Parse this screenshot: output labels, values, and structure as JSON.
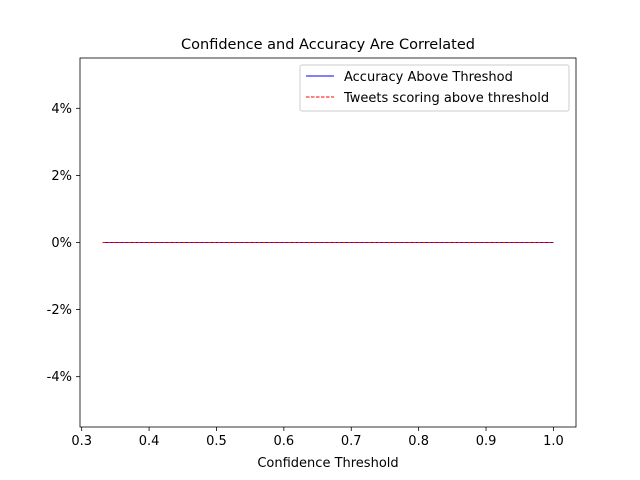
{
  "chart_data": {
    "type": "line",
    "title": "Confidence and Accuracy Are Correlated",
    "xlabel": "Confidence Threshold",
    "ylabel": "",
    "xlim": [
      0.2975,
      1.0335
    ],
    "ylim": [
      -0.055,
      0.055
    ],
    "xticks": [
      0.3,
      0.4,
      0.5,
      0.6,
      0.7,
      0.8,
      0.9,
      1.0
    ],
    "xtick_labels": [
      "0.3",
      "0.4",
      "0.5",
      "0.6",
      "0.7",
      "0.8",
      "0.9",
      "1.0"
    ],
    "yticks": [
      -0.04,
      -0.02,
      0.0,
      0.02,
      0.04
    ],
    "ytick_labels": [
      "-4%",
      "-2%",
      "0%",
      "2%",
      "4%"
    ],
    "grid": false,
    "legend_position": "upper-right",
    "series": [
      {
        "name": "Accuracy Above Threshod",
        "color": "#0000ff",
        "style": "solid",
        "x": [
          0.331,
          1.0
        ],
        "y": [
          0.0,
          0.0
        ]
      },
      {
        "name": "Tweets scoring above threshold",
        "color": "#ff0000",
        "style": "dashed",
        "x": [
          0.331,
          1.0
        ],
        "y": [
          0.0,
          0.0
        ]
      }
    ]
  }
}
